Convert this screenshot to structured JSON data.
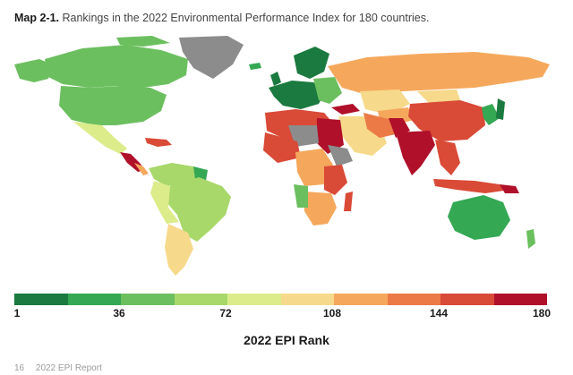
{
  "caption": {
    "label": "Map 2-1.",
    "text": "Rankings in the 2022 Environmental Performance Index for 180 countries."
  },
  "legend": {
    "title": "2022 EPI Rank",
    "ticks": [
      "1",
      "36",
      "72",
      "108",
      "144",
      "180"
    ],
    "colors": [
      "#1a7a3f",
      "#34a853",
      "#6cbf5f",
      "#a8d86a",
      "#dcec8a",
      "#f6d98a",
      "#f5a85c",
      "#ec7a47",
      "#d94a37",
      "#b0102a"
    ],
    "no_data_color": "#8c8c8c"
  },
  "footer": {
    "page": "16",
    "report": "2022 EPI Report"
  }
}
